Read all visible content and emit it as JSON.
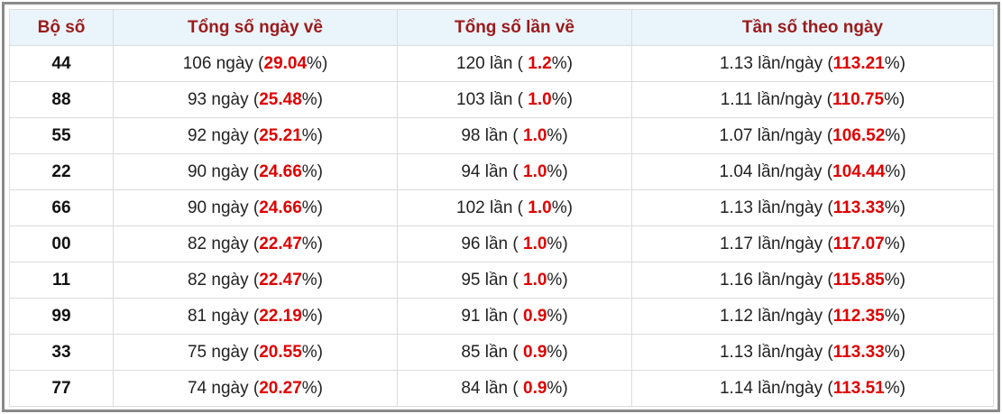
{
  "table": {
    "header": [
      "Bộ số",
      "Tổng số ngày về",
      "Tổng số lần về",
      "Tần số theo ngày"
    ],
    "rows": [
      [
        [
          "44"
        ],
        [
          "106 ngày (",
          "29.04",
          "%)"
        ],
        [
          "120 lần ( ",
          "1.2",
          "%)"
        ],
        [
          "1.13 lần/ngày (",
          "113.21",
          "%)"
        ]
      ],
      [
        [
          "88"
        ],
        [
          "93 ngày (",
          "25.48",
          "%)"
        ],
        [
          "103 lần ( ",
          "1.0",
          "%)"
        ],
        [
          "1.11 lần/ngày (",
          "110.75",
          "%)"
        ]
      ],
      [
        [
          "55"
        ],
        [
          "92 ngày (",
          "25.21",
          "%)"
        ],
        [
          "98 lần ( ",
          "1.0",
          "%)"
        ],
        [
          "1.07 lần/ngày (",
          "106.52",
          "%)"
        ]
      ],
      [
        [
          "22"
        ],
        [
          "90 ngày (",
          "24.66",
          "%)"
        ],
        [
          "94 lần ( ",
          "1.0",
          "%)"
        ],
        [
          "1.04 lần/ngày (",
          "104.44",
          "%)"
        ]
      ],
      [
        [
          "66"
        ],
        [
          "90 ngày (",
          "24.66",
          "%)"
        ],
        [
          "102 lần ( ",
          "1.0",
          "%)"
        ],
        [
          "1.13 lần/ngày (",
          "113.33",
          "%)"
        ]
      ],
      [
        [
          "00"
        ],
        [
          "82 ngày (",
          "22.47",
          "%)"
        ],
        [
          "96 lần ( ",
          "1.0",
          "%)"
        ],
        [
          "1.17 lần/ngày (",
          "117.07",
          "%)"
        ]
      ],
      [
        [
          "11"
        ],
        [
          "82 ngày (",
          "22.47",
          "%)"
        ],
        [
          "95 lần ( ",
          "1.0",
          "%)"
        ],
        [
          "1.16 lần/ngày (",
          "115.85",
          "%)"
        ]
      ],
      [
        [
          "99"
        ],
        [
          "81 ngày (",
          "22.19",
          "%)"
        ],
        [
          "91 lần ( ",
          "0.9",
          "%)"
        ],
        [
          "1.12 lần/ngày (",
          "112.35",
          "%)"
        ]
      ],
      [
        [
          "33"
        ],
        [
          "75 ngày (",
          "20.55",
          "%)"
        ],
        [
          "85 lần ( ",
          "0.9",
          "%)"
        ],
        [
          "1.13 lần/ngày (",
          "113.33",
          "%)"
        ]
      ],
      [
        [
          "77"
        ],
        [
          "74 ngày (",
          "20.27",
          "%)"
        ],
        [
          "84 lần ( ",
          "0.9",
          "%)"
        ],
        [
          "1.14 lần/ngày (",
          "113.51",
          "%)"
        ]
      ]
    ]
  }
}
